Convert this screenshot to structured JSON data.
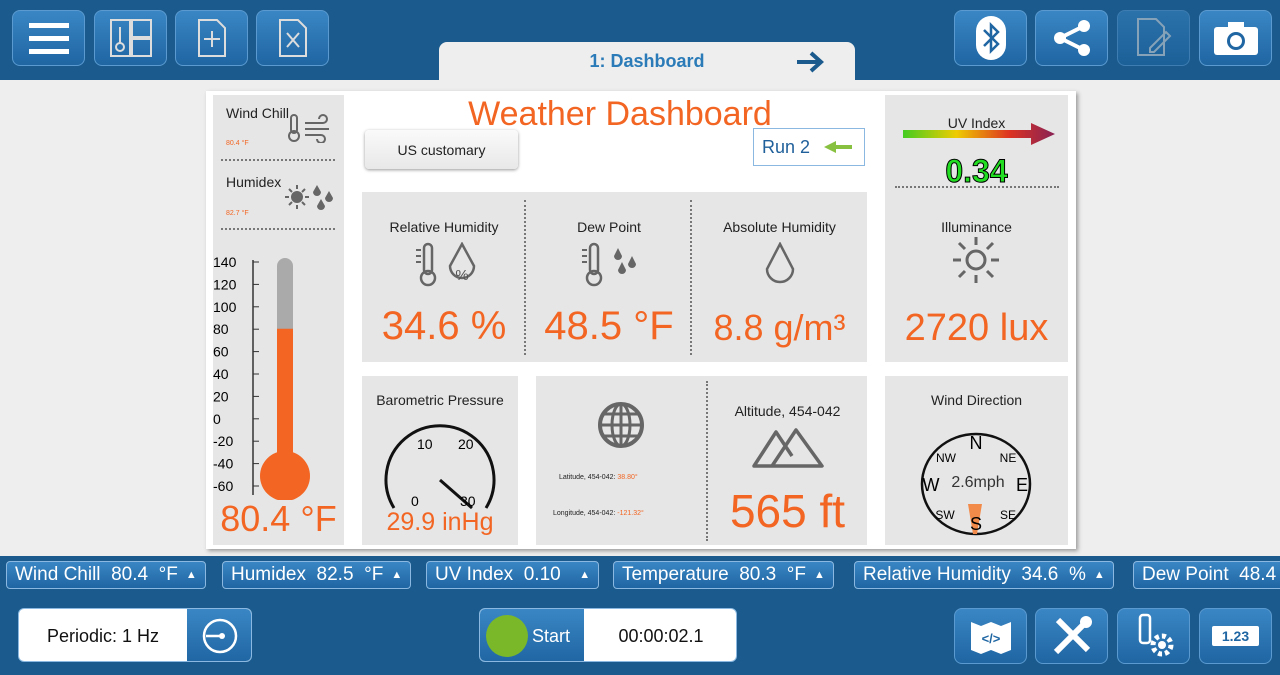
{
  "tab": {
    "label": "1: Dashboard"
  },
  "dashboard": {
    "title": "Weather Dashboard",
    "units_button": "US customary",
    "run_label": "Run 2",
    "wind_chill": {
      "label": "Wind Chill",
      "value": "80.4 °F"
    },
    "humidex": {
      "label": "Humidex",
      "value": "82.7 °F"
    },
    "thermometer": {
      "ticks": [
        "140",
        "120",
        "100",
        "80",
        "60",
        "40",
        "20",
        "0",
        "-20",
        "-40",
        "-60"
      ],
      "value": "80.4 °F",
      "fill_value": 80.4,
      "range": [
        -60,
        140
      ]
    },
    "relative_humidity": {
      "label": "Relative Humidity",
      "value": "34.6 %"
    },
    "dew_point": {
      "label": "Dew Point",
      "value": "48.5 °F"
    },
    "absolute_humidity": {
      "label": "Absolute Humidity",
      "value": "8.8 g/m³"
    },
    "uv_index": {
      "label": "UV Index",
      "value": "0.34"
    },
    "illuminance": {
      "label": "Illuminance",
      "value": "2720 lux"
    },
    "pressure": {
      "label": "Barometric Pressure",
      "value": "29.9 inHg",
      "ticks": [
        "0",
        "10",
        "20",
        "30"
      ]
    },
    "location": {
      "lat_label": "Latitude, 454-042: ",
      "lat": "38.80°",
      "lon_label": "Longitude, 454-042: ",
      "lon": "-121.32°"
    },
    "altitude": {
      "label": "Altitude, 454-042",
      "value": "565 ft"
    },
    "wind_direction": {
      "label": "Wind Direction",
      "speed": "2.6mph",
      "points": [
        "N",
        "NE",
        "E",
        "SE",
        "S",
        "SW",
        "W",
        "NW"
      ]
    }
  },
  "strip": [
    {
      "name": "Wind Chill",
      "value": "80.4",
      "unit": "°F"
    },
    {
      "name": "Humidex",
      "value": "82.5",
      "unit": "°F"
    },
    {
      "name": "UV Index",
      "value": "0.10",
      "unit": ""
    },
    {
      "name": "Temperature",
      "value": "80.3",
      "unit": "°F"
    },
    {
      "name": "Relative Humidity",
      "value": "34.6",
      "unit": "%"
    },
    {
      "name": "Dew Point",
      "value": "48.4",
      "unit": ""
    }
  ],
  "bottom": {
    "mode": "Periodic: 1 Hz",
    "start": "Start",
    "timer": "00:00:02.1",
    "meter_label": "1.23"
  },
  "colors": {
    "bar": "#1a5a8c",
    "accent": "#f26522",
    "uv_value": "#22dd22"
  }
}
